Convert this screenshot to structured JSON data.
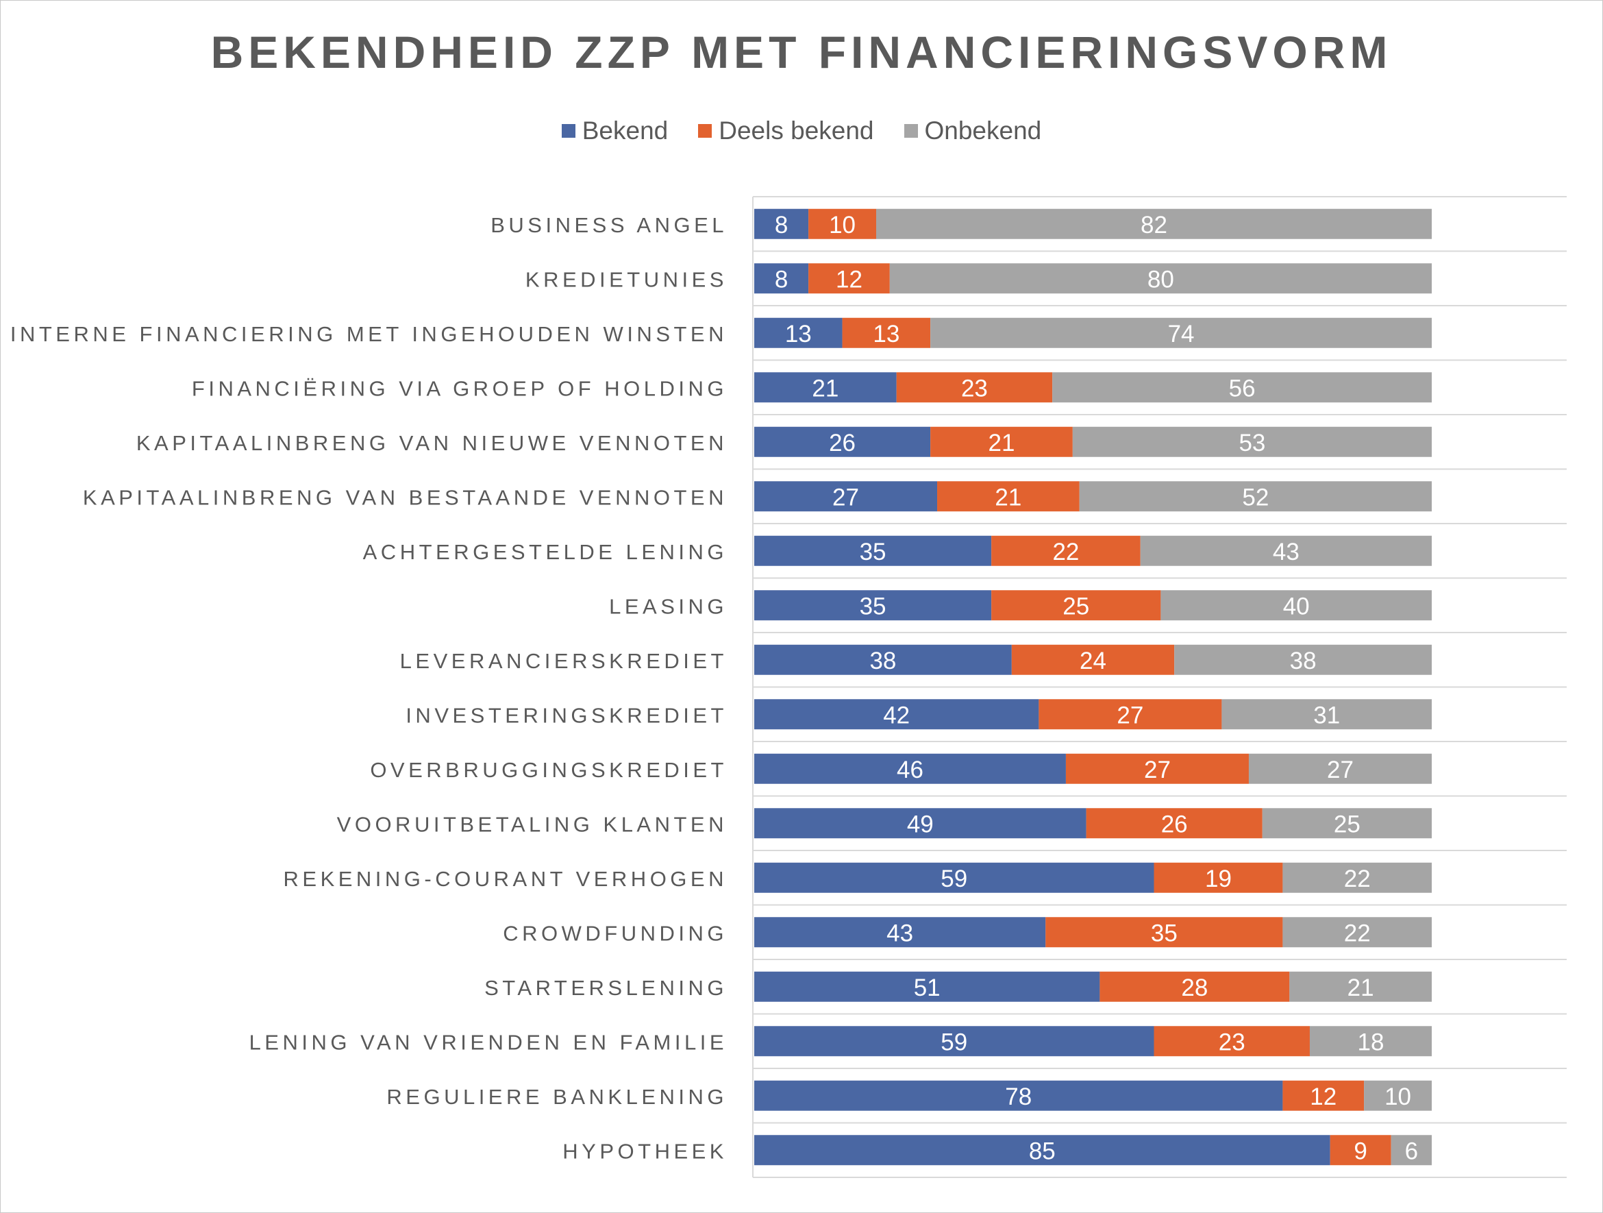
{
  "chart_data": {
    "type": "bar",
    "orientation": "horizontal",
    "stacked": true,
    "title": "BEKENDHEID ZZP MET FINANCIERINGSVORM",
    "categories": [
      "BUSINESS ANGEL",
      "KREDIETUNIES",
      "INTERNE FINANCIERING MET INGEHOUDEN WINSTEN",
      "FINANCIËRING VIA GROEP OF HOLDING",
      "KAPITAALINBRENG VAN NIEUWE VENNOTEN",
      "KAPITAALINBRENG VAN BESTAANDE VENNOTEN",
      "ACHTERGESTELDE LENING",
      "LEASING",
      "LEVERANCIERSKREDIET",
      "INVESTERINGSKREDIET",
      "OVERBRUGGINGSKREDIET",
      "VOORUITBETALING KLANTEN",
      "REKENING-COURANT VERHOGEN",
      "CROWDFUNDING",
      "STARTERSLENING",
      "LENING VAN VRIENDEN EN FAMILIE",
      "REGULIERE BANKLENING",
      "HYPOTHEEK"
    ],
    "series": [
      {
        "name": "Bekend",
        "color": "#4a67a3",
        "values": [
          8,
          8,
          13,
          21,
          26,
          27,
          35,
          35,
          38,
          42,
          46,
          49,
          59,
          43,
          51,
          59,
          78,
          85
        ]
      },
      {
        "name": "Deels bekend",
        "color": "#e2622f",
        "values": [
          10,
          12,
          13,
          23,
          21,
          21,
          22,
          25,
          24,
          27,
          27,
          26,
          19,
          35,
          28,
          23,
          12,
          9
        ]
      },
      {
        "name": "Onbekend",
        "color": "#a5a5a5",
        "values": [
          82,
          80,
          74,
          56,
          53,
          52,
          43,
          40,
          38,
          31,
          27,
          25,
          22,
          22,
          21,
          18,
          10,
          6
        ]
      }
    ],
    "xlim": [
      0,
      100
    ],
    "legend_position": "top",
    "grid": "horizontal-category-lines",
    "data_labels": true
  },
  "colors": {
    "text": "#595959",
    "value_label": "#ffffff",
    "grid": "#d9d9d9"
  }
}
